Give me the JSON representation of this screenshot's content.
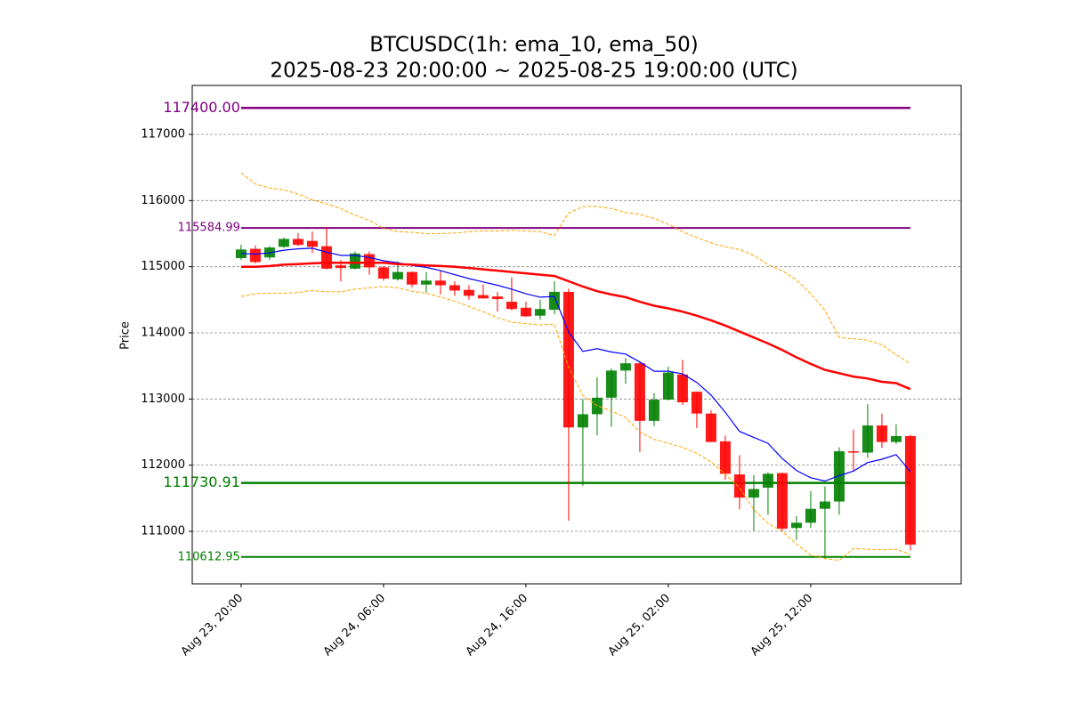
{
  "chart_data": {
    "type": "candlestick",
    "title": "BTCUSDC(1h: ema_10, ema_50)",
    "subtitle": "2025-08-23 20:00:00 ~ 2025-08-25 19:00:00 (UTC)",
    "y_label": "Price",
    "x": [
      "2025-08-23 20:00",
      "2025-08-23 21:00",
      "2025-08-23 22:00",
      "2025-08-23 23:00",
      "2025-08-24 00:00",
      "2025-08-24 01:00",
      "2025-08-24 02:00",
      "2025-08-24 03:00",
      "2025-08-24 04:00",
      "2025-08-24 05:00",
      "2025-08-24 06:00",
      "2025-08-24 07:00",
      "2025-08-24 08:00",
      "2025-08-24 09:00",
      "2025-08-24 10:00",
      "2025-08-24 11:00",
      "2025-08-24 12:00",
      "2025-08-24 13:00",
      "2025-08-24 14:00",
      "2025-08-24 15:00",
      "2025-08-24 16:00",
      "2025-08-24 17:00",
      "2025-08-24 18:00",
      "2025-08-24 19:00",
      "2025-08-24 20:00",
      "2025-08-24 21:00",
      "2025-08-24 22:00",
      "2025-08-24 23:00",
      "2025-08-25 00:00",
      "2025-08-25 01:00",
      "2025-08-25 02:00",
      "2025-08-25 03:00",
      "2025-08-25 04:00",
      "2025-08-25 05:00",
      "2025-08-25 06:00",
      "2025-08-25 07:00",
      "2025-08-25 08:00",
      "2025-08-25 09:00",
      "2025-08-25 10:00",
      "2025-08-25 11:00",
      "2025-08-25 12:00",
      "2025-08-25 13:00",
      "2025-08-25 14:00",
      "2025-08-25 15:00",
      "2025-08-25 16:00",
      "2025-08-25 17:00",
      "2025-08-25 18:00",
      "2025-08-25 19:00"
    ],
    "open": [
      115130,
      115270,
      115140,
      115300,
      115420,
      115390,
      115310,
      115020,
      114970,
      115190,
      114990,
      114810,
      114920,
      114730,
      114790,
      114720,
      114650,
      114570,
      114550,
      114470,
      114380,
      114260,
      114350,
      114620,
      112570,
      112770,
      113020,
      113430,
      113540,
      112670,
      112990,
      113370,
      113110,
      112780,
      112360,
      111860,
      111510,
      111660,
      111880,
      111050,
      111130,
      111340,
      111450,
      112210,
      112190,
      112600,
      112350,
      112440
    ],
    "high": [
      115330,
      115320,
      115310,
      115440,
      115510,
      115530,
      115600,
      115100,
      115230,
      115230,
      115010,
      115080,
      114930,
      114920,
      114950,
      114780,
      114720,
      114730,
      114620,
      114840,
      114470,
      114500,
      114780,
      114670,
      113000,
      113330,
      113460,
      113620,
      113560,
      113090,
      113490,
      113590,
      113110,
      112830,
      112450,
      112150,
      111850,
      111890,
      111890,
      111230,
      111610,
      111680,
      112270,
      112540,
      112920,
      112780,
      112620,
      112460
    ],
    "low": [
      115100,
      115050,
      115100,
      115290,
      115310,
      115210,
      114960,
      114780,
      114960,
      114880,
      114790,
      114790,
      114690,
      114610,
      114580,
      114560,
      114500,
      114520,
      114320,
      114340,
      114240,
      114200,
      114280,
      111160,
      111690,
      112450,
      112580,
      113230,
      112200,
      112590,
      112980,
      112910,
      112560,
      112350,
      111780,
      111330,
      111010,
      111250,
      111000,
      110870,
      111050,
      110580,
      111250,
      111920,
      112110,
      112260,
      112320,
      110710
    ],
    "close": [
      115260,
      115070,
      115290,
      115420,
      115330,
      115300,
      114970,
      114980,
      115200,
      114990,
      114820,
      114920,
      114730,
      114790,
      114720,
      114640,
      114560,
      114520,
      114510,
      114360,
      114250,
      114360,
      114620,
      112570,
      112770,
      113020,
      113430,
      113540,
      112670,
      112990,
      113400,
      112950,
      112780,
      112350,
      111870,
      111510,
      111640,
      111870,
      111040,
      111130,
      111340,
      111450,
      112210,
      112190,
      112600,
      112350,
      112440,
      110800
    ],
    "up_color": "green",
    "down_color": "red",
    "series": [
      {
        "color": "blue",
        "width": 1.2,
        "style": "solid",
        "values": [
          115200,
          115190,
          115210,
          115250,
          115270,
          115280,
          115220,
          115170,
          115170,
          115140,
          115090,
          115060,
          115020,
          114990,
          114940,
          114880,
          114820,
          114770,
          114720,
          114660,
          114590,
          114540,
          114550,
          114010,
          113720,
          113760,
          113710,
          113680,
          113560,
          113420,
          113420,
          113380,
          113250,
          113060,
          112800,
          112510,
          112420,
          112330,
          112100,
          111920,
          111810,
          111760,
          111840,
          111910,
          112040,
          112090,
          112160,
          111900
        ]
      },
      {
        "color": "red",
        "width": 2.5,
        "style": "solid",
        "values": [
          115000,
          115000,
          115010,
          115030,
          115040,
          115050,
          115060,
          115060,
          115060,
          115060,
          115060,
          115040,
          115030,
          115020,
          115010,
          115000,
          114980,
          114960,
          114940,
          114920,
          114900,
          114880,
          114860,
          114780,
          114700,
          114630,
          114580,
          114540,
          114470,
          114410,
          114370,
          114320,
          114260,
          114190,
          114110,
          114020,
          113930,
          113840,
          113740,
          113630,
          113530,
          113440,
          113390,
          113340,
          113310,
          113260,
          113240,
          113150
        ]
      },
      {
        "color": "orange",
        "width": 1,
        "style": "dashed",
        "values": [
          116420,
          116250,
          116190,
          116160,
          116100,
          116010,
          115950,
          115880,
          115780,
          115700,
          115580,
          115530,
          115520,
          115500,
          115500,
          115510,
          115530,
          115540,
          115540,
          115550,
          115540,
          115530,
          115470,
          115810,
          115910,
          115910,
          115880,
          115820,
          115790,
          115730,
          115640,
          115530,
          115440,
          115360,
          115300,
          115260,
          115170,
          115030,
          114940,
          114800,
          114590,
          114340,
          113930,
          113910,
          113890,
          113820,
          113670,
          113530
        ]
      },
      {
        "color": "orange",
        "width": 1,
        "style": "dashed",
        "values": [
          114550,
          114590,
          114600,
          114600,
          114610,
          114640,
          114620,
          114620,
          114660,
          114680,
          114700,
          114680,
          114630,
          114600,
          114540,
          114480,
          114400,
          114320,
          114230,
          114160,
          114140,
          114120,
          114130,
          113480,
          113050,
          112900,
          112820,
          112720,
          112500,
          112390,
          112330,
          112270,
          112180,
          112050,
          111860,
          111660,
          111330,
          111120,
          111000,
          110810,
          110640,
          110590,
          110560,
          110740,
          110730,
          110720,
          110730,
          110650
        ]
      }
    ],
    "levels": [
      {
        "value": 117400,
        "label": "117400.00",
        "color": "purple",
        "width": 2.5,
        "font_size": 16
      },
      {
        "value": 115584.99,
        "label": "115584.99",
        "color": "purple",
        "width": 2,
        "font_size": 13
      },
      {
        "value": 111730.91,
        "label": "111730.91",
        "color": "green",
        "width": 2.5,
        "font_size": 16
      },
      {
        "value": 110612.95,
        "label": "110612.95",
        "color": "green",
        "width": 2,
        "font_size": 13
      }
    ],
    "xlim": [
      "2025-08-23 16:34",
      "2025-08-25 22:34"
    ],
    "xticks": [
      {
        "value": "2025-08-23 20:00",
        "label": "Aug 23, 20:00"
      },
      {
        "value": "2025-08-24 06:00",
        "label": "Aug 24, 06:00"
      },
      {
        "value": "2025-08-24 16:00",
        "label": "Aug 24, 16:00"
      },
      {
        "value": "2025-08-25 02:00",
        "label": "Aug 25, 02:00"
      },
      {
        "value": "2025-08-25 12:00",
        "label": "Aug 25, 12:00"
      }
    ],
    "ylim": [
      110206,
      117740
    ],
    "yticks": [
      111000,
      112000,
      113000,
      114000,
      115000,
      116000,
      117000
    ],
    "grid": true
  }
}
